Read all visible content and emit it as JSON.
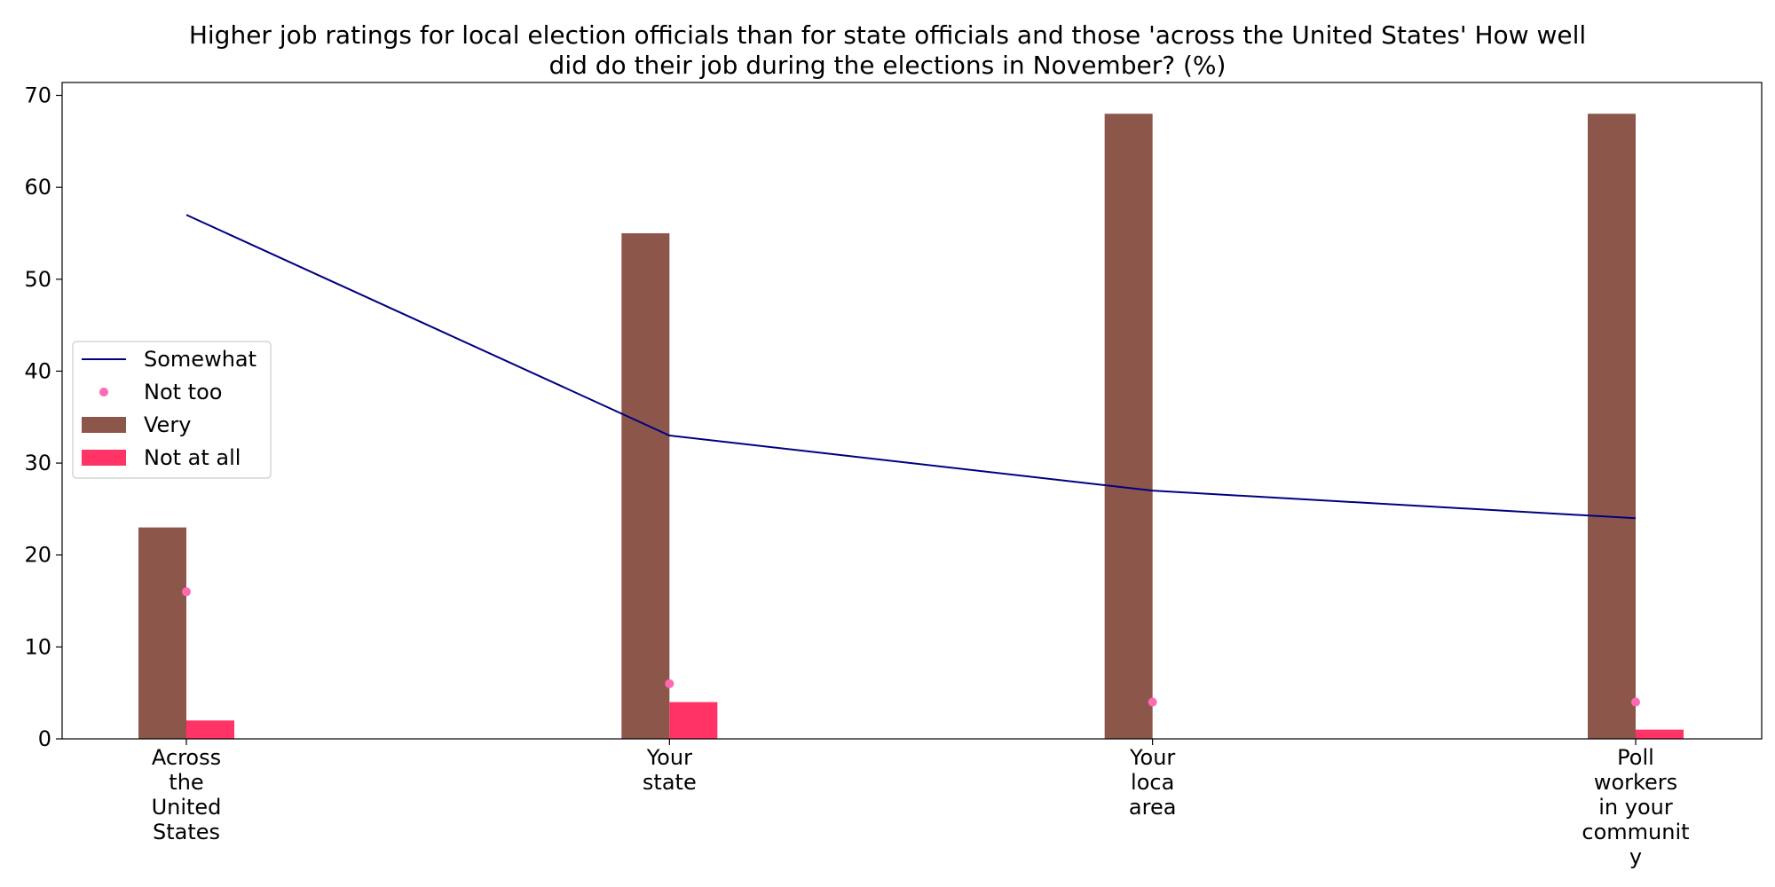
{
  "chart_data": {
    "type": "bar",
    "title_lines": [
      "Higher job ratings for local election officials than for state officials and those 'across the United States' How well",
      "did do their job during the elections in November? (%)"
    ],
    "categories": [
      [
        "Across",
        "the",
        "United",
        "States"
      ],
      [
        "Your",
        "state"
      ],
      [
        "Your",
        "loca",
        "area"
      ],
      [
        "Poll",
        "workers",
        "in your",
        "communit",
        "y"
      ]
    ],
    "ylim": [
      0,
      71.4
    ],
    "yticks": [
      0,
      10,
      20,
      30,
      40,
      50,
      60,
      70
    ],
    "grid": false,
    "legend_position": "center-left",
    "series": [
      {
        "name": "Very",
        "type": "bar",
        "values": [
          23,
          55,
          68,
          68
        ],
        "color": "#8c564b"
      },
      {
        "name": "Not at all",
        "type": "bar",
        "values": [
          2,
          4,
          0,
          1
        ],
        "color": "#ff3366"
      },
      {
        "name": "Somewhat",
        "type": "line",
        "values": [
          57,
          33,
          27,
          24
        ],
        "color": "#000080"
      },
      {
        "name": "Not too",
        "type": "scatter",
        "values": [
          16,
          6,
          4,
          4
        ],
        "color": "#ff69b4"
      }
    ]
  }
}
